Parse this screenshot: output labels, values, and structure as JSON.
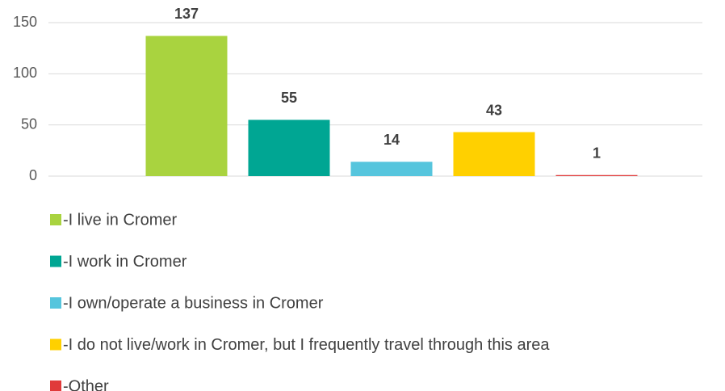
{
  "chart_data": {
    "type": "bar",
    "series": [
      {
        "name": "-I live in Cromer",
        "color": "#a9d33f",
        "values": [
          137
        ]
      },
      {
        "name": "-I work in Cromer",
        "color": "#00a693",
        "values": [
          55
        ]
      },
      {
        "name": "-I own/operate a business in Cromer",
        "color": "#56c5dd",
        "values": [
          14
        ]
      },
      {
        "name": "-I do not live/work in Cromer, but I frequently travel through this area",
        "color": "#ffd000",
        "values": [
          43
        ]
      },
      {
        "name": "-Other",
        "color": "#e03a3a",
        "values": [
          1
        ]
      }
    ],
    "ylim": [
      0,
      150
    ],
    "yticks": [
      0,
      50,
      100,
      150
    ],
    "grid": true,
    "legend": "bottom"
  }
}
